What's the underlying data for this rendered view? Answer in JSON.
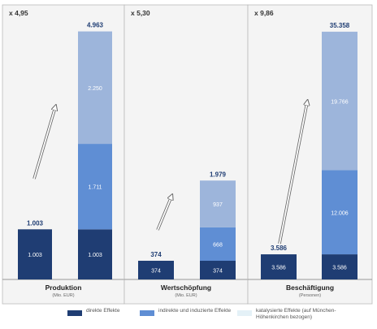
{
  "chart_data": {
    "type": "bar",
    "stacked": true,
    "panels": [
      {
        "multiplier": "x 4,95",
        "label": "Produktion",
        "unit": "(Mio. EUR)",
        "ymax": 5300,
        "direct_bar": {
          "value": 1003,
          "total_label": "1.003",
          "inner_label": "1.003"
        },
        "stack_bar": {
          "total_label": "4.963",
          "segments": [
            {
              "series": "direct",
              "value": 1003,
              "label": "1.003"
            },
            {
              "series": "indirect",
              "value": 1711,
              "label": "1.711"
            },
            {
              "series": "catalyzed",
              "value": 2250,
              "label": "2.250"
            }
          ]
        }
      },
      {
        "multiplier": "x 5,30",
        "label": "Wertschöpfung",
        "unit": "(Mio. EUR)",
        "ymax": 5300,
        "direct_bar": {
          "value": 374,
          "total_label": "374",
          "inner_label": "374"
        },
        "stack_bar": {
          "total_label": "1.979",
          "segments": [
            {
              "series": "direct",
              "value": 374,
              "label": "374"
            },
            {
              "series": "indirect",
              "value": 668,
              "label": "668"
            },
            {
              "series": "catalyzed",
              "value": 937,
              "label": "937"
            }
          ]
        }
      },
      {
        "multiplier": "x 9,86",
        "label": "Beschäftigung",
        "unit": "(Personen)",
        "ymax": 37800,
        "direct_bar": {
          "value": 3586,
          "total_label": "3.586",
          "inner_label": "3.586"
        },
        "stack_bar": {
          "total_label": "35.358",
          "segments": [
            {
              "series": "direct",
              "value": 3586,
              "label": "3.586"
            },
            {
              "series": "indirect",
              "value": 12006,
              "label": "12.006"
            },
            {
              "series": "catalyzed",
              "value": 19766,
              "label": "19.766"
            }
          ]
        }
      }
    ],
    "legend": [
      {
        "key": "direct",
        "label": "direkte Effekte",
        "color": "#1f3d73"
      },
      {
        "key": "indirect",
        "label": "indirekte und induzierte Effekte",
        "color": "#5f8ed4"
      },
      {
        "key": "catalyzed",
        "label": "katalysierte Effekte (auf München-Höhenkirchen bezogen)",
        "color": "#9db5db"
      }
    ],
    "legend_position": "bottom",
    "grid": false
  },
  "colors": {
    "panel_bg": "#f4f4f4",
    "panel_border": "#bbbbbb",
    "label_text": "#1f3d73",
    "baseline": "#999999"
  }
}
